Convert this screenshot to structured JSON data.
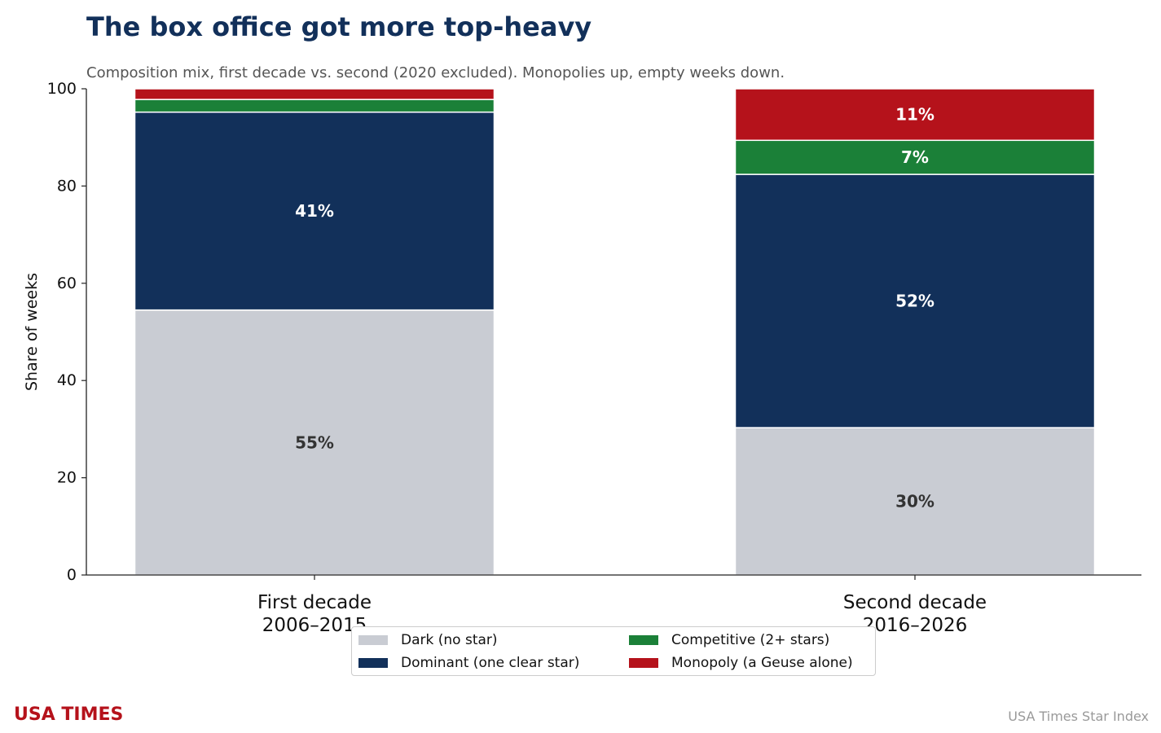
{
  "title": "The box office got more top-heavy",
  "subtitle": "Composition mix, first decade vs. second (2020 excluded). Monopolies up, empty weeks down.",
  "brand": "USA TIMES",
  "source": "USA Times Star Index",
  "chart_data": {
    "type": "bar",
    "stacked": true,
    "ylabel": "Share of weeks",
    "ylim": [
      0,
      100
    ],
    "yticks": [
      0,
      20,
      40,
      60,
      80,
      100
    ],
    "grid": false,
    "legend_position": "bottom-center",
    "categories": [
      {
        "line1": "First decade",
        "line2": "2006–2015"
      },
      {
        "line1": "Second decade",
        "line2": "2016–2026"
      }
    ],
    "series": [
      {
        "name": "Dark (no star)",
        "color": "#c9ccd3",
        "label_color": "#333333",
        "values": [
          54.5,
          30.3
        ],
        "labels": [
          "55%",
          "30%"
        ]
      },
      {
        "name": "Dominant (one clear star)",
        "color": "#12305a",
        "label_color": "#ffffff",
        "values": [
          40.7,
          52.1
        ],
        "labels": [
          "41%",
          "52%"
        ]
      },
      {
        "name": "Competitive (2+ stars)",
        "color": "#1b8038",
        "label_color": "#ffffff",
        "values": [
          2.6,
          7.0
        ],
        "labels": [
          "",
          "7%"
        ]
      },
      {
        "name": "Monopoly (a Geuse alone)",
        "color": "#b5121b",
        "label_color": "#ffffff",
        "values": [
          2.2,
          10.6
        ],
        "labels": [
          "",
          "11%"
        ]
      }
    ]
  }
}
